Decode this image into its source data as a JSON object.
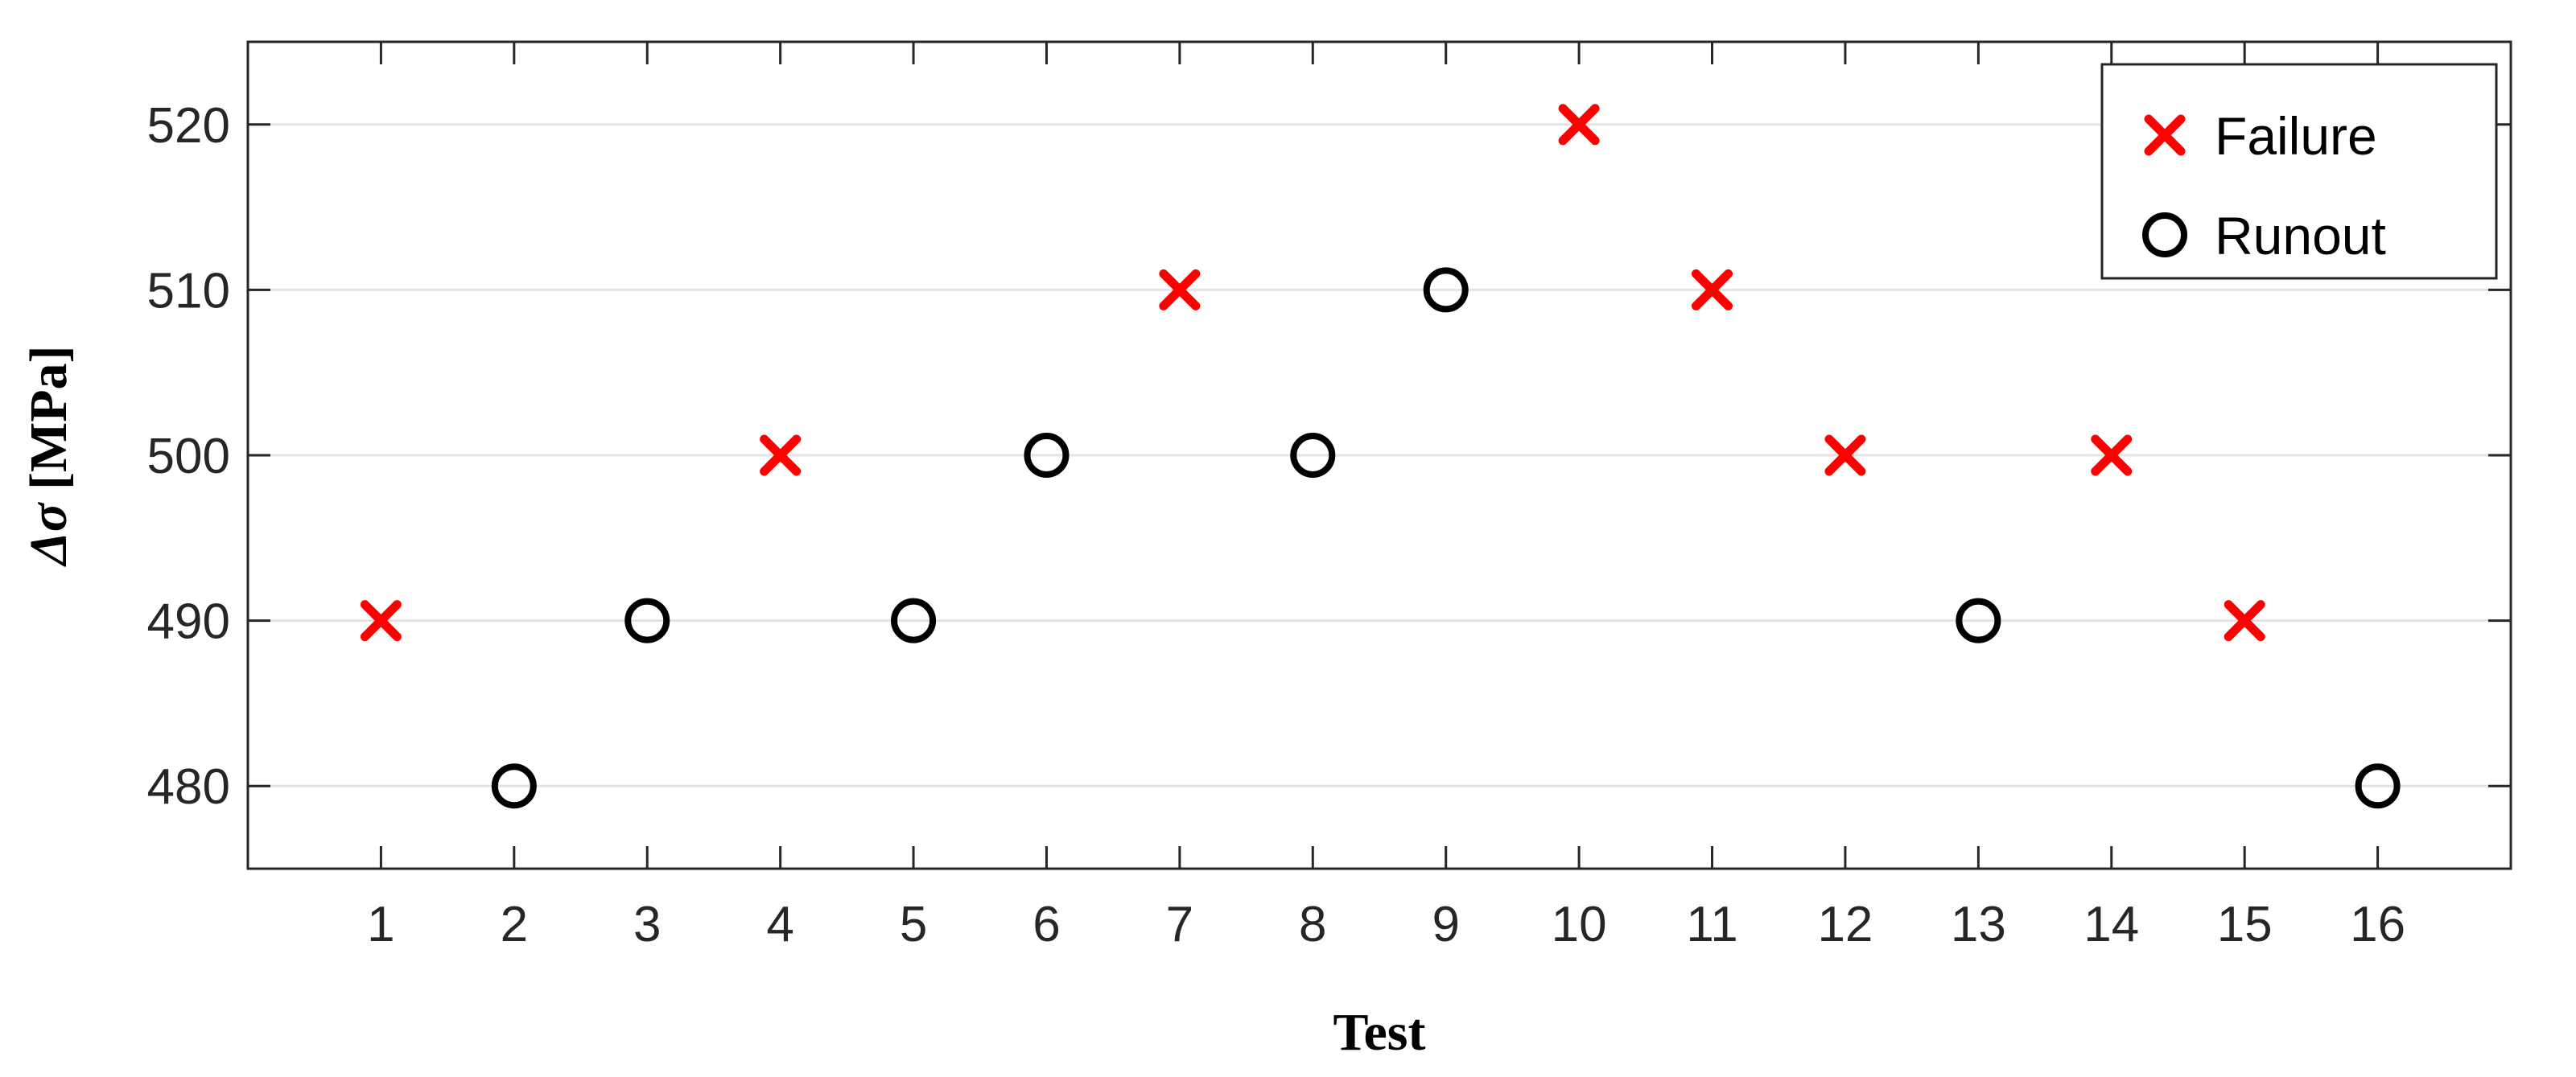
{
  "chart_data": {
    "type": "scatter",
    "xlabel": "Test",
    "ylabel_symbol": "Δσ",
    "ylabel_unit": "[MPa]",
    "x_ticks": [
      1,
      2,
      3,
      4,
      5,
      6,
      7,
      8,
      9,
      10,
      11,
      12,
      13,
      14,
      15,
      16
    ],
    "y_ticks": [
      480,
      490,
      500,
      510,
      520
    ],
    "xlim": [
      0,
      17
    ],
    "ylim": [
      475,
      525
    ],
    "grid": "horizontal",
    "legend_position": "top-right",
    "series": [
      {
        "name": "Failure",
        "marker": "x",
        "color": "#ff0000",
        "points": [
          {
            "x": 1,
            "y": 490
          },
          {
            "x": 4,
            "y": 500
          },
          {
            "x": 7,
            "y": 510
          },
          {
            "x": 10,
            "y": 520
          },
          {
            "x": 11,
            "y": 510
          },
          {
            "x": 12,
            "y": 500
          },
          {
            "x": 14,
            "y": 500
          },
          {
            "x": 15,
            "y": 490
          }
        ]
      },
      {
        "name": "Runout",
        "marker": "circle",
        "color": "#000000",
        "points": [
          {
            "x": 2,
            "y": 480
          },
          {
            "x": 3,
            "y": 490
          },
          {
            "x": 5,
            "y": 490
          },
          {
            "x": 6,
            "y": 500
          },
          {
            "x": 8,
            "y": 500
          },
          {
            "x": 9,
            "y": 510
          },
          {
            "x": 13,
            "y": 490
          },
          {
            "x": 16,
            "y": 480
          }
        ]
      }
    ]
  }
}
